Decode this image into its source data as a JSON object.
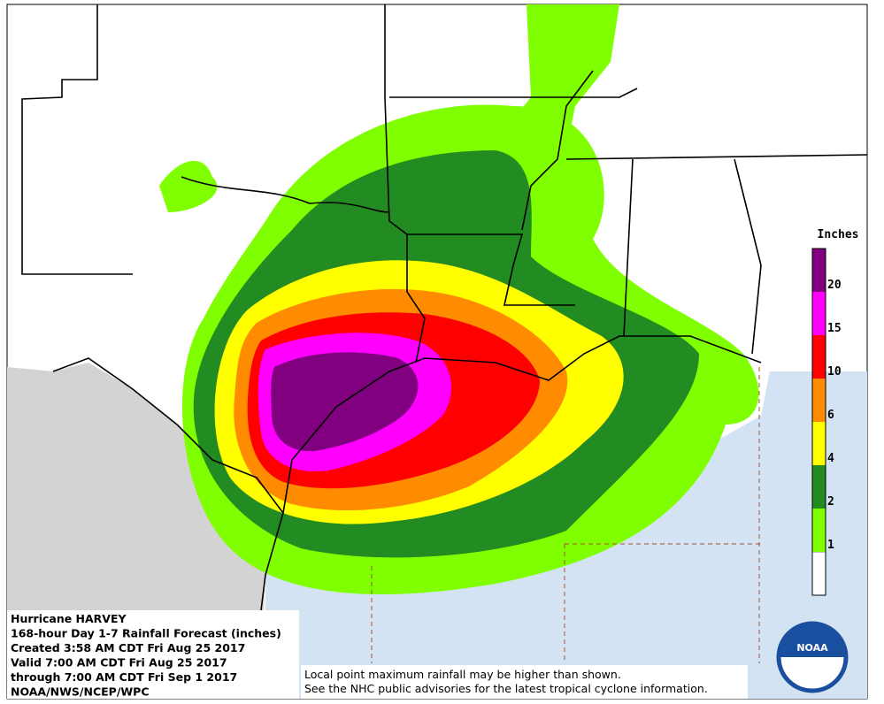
{
  "header": {
    "lines": [
      "Hurricane HARVEY",
      "168-hour Day 1-7 Rainfall Forecast (inches)",
      "Created 3:58 AM CDT Fri Aug 25 2017",
      "Valid 7:00 AM CDT Fri Aug 25 2017",
      "through 7:00 AM CDT Fri Sep 1 2017",
      "NOAA/NWS/NCEP/WPC"
    ]
  },
  "note": {
    "lines": [
      "Local point maximum rainfall may be higher than shown.",
      "See the NHC public advisories for the latest tropical cyclone information."
    ]
  },
  "logo": {
    "label": "NOAA"
  },
  "legend": {
    "title": "Inches",
    "base_color": "#ffffff",
    "levels": [
      {
        "value": 1,
        "color": "#7fff00"
      },
      {
        "value": 2,
        "color": "#228b22"
      },
      {
        "value": 4,
        "color": "#ffff00"
      },
      {
        "value": 6,
        "color": "#ff8c00"
      },
      {
        "value": 10,
        "color": "#ff0000"
      },
      {
        "value": 15,
        "color": "#ff00ff"
      },
      {
        "value": 20,
        "color": "#800080"
      }
    ]
  }
}
